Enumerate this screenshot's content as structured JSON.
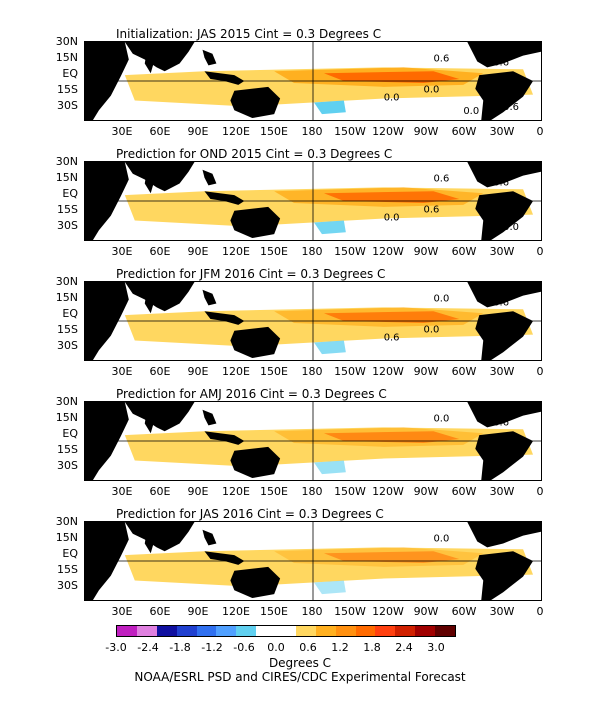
{
  "panels": [
    {
      "title": "Initialization: JAS 2015  Cint = 0.3 Degrees C",
      "labels": [
        "0.6",
        "0.6",
        "0.0",
        "0.0",
        "0.6",
        "0.0"
      ]
    },
    {
      "title": "Prediction for OND 2015  Cint = 0.3 Degrees C",
      "labels": [
        "0.6",
        "0.6",
        "0.0",
        "0.6",
        "0.0"
      ]
    },
    {
      "title": "Prediction for JFM 2016  Cint = 0.3 Degrees C",
      "labels": [
        "0.0",
        "0.6",
        "0.6",
        "0.0"
      ]
    },
    {
      "title": "Prediction for AMJ 2016  Cint = 0.3 Degrees C",
      "labels": [
        "0.0",
        "0.6"
      ]
    },
    {
      "title": "Prediction for JAS 2016  Cint = 0.3 Degrees C",
      "labels": [
        "0.0"
      ]
    }
  ],
  "lat_labels": [
    "30N",
    "15N",
    "EQ",
    "15S",
    "30S"
  ],
  "lon_labels": [
    "30E",
    "60E",
    "90E",
    "120E",
    "150E",
    "180",
    "150W",
    "120W",
    "90W",
    "60W",
    "30W",
    "0"
  ],
  "colorbar": {
    "colors": [
      "#c01fc0",
      "#e080e0",
      "#1010a0",
      "#2040d0",
      "#3070f0",
      "#50a0ff",
      "#60d0f0",
      "#ffffff",
      "#ffffff",
      "#ffd760",
      "#ffb020",
      "#ff9010",
      "#ff6a00",
      "#ff4010",
      "#d02000",
      "#a00000",
      "#600000"
    ],
    "labels": [
      "-3.0",
      "-2.4",
      "-1.8",
      "-1.2",
      "-0.6",
      "0.0",
      "0.6",
      "1.2",
      "1.8",
      "2.4",
      "3.0"
    ],
    "units": "Degrees C"
  },
  "credit": "NOAA/ESRL PSD and CIRES/CDC Experimental Forecast",
  "colors": {
    "land": "#000000",
    "warm_light": "#ffd760",
    "warm": "#ffb020",
    "hot": "#ff6a00",
    "hottest": "#c01000",
    "cool": "#60d0f0"
  }
}
